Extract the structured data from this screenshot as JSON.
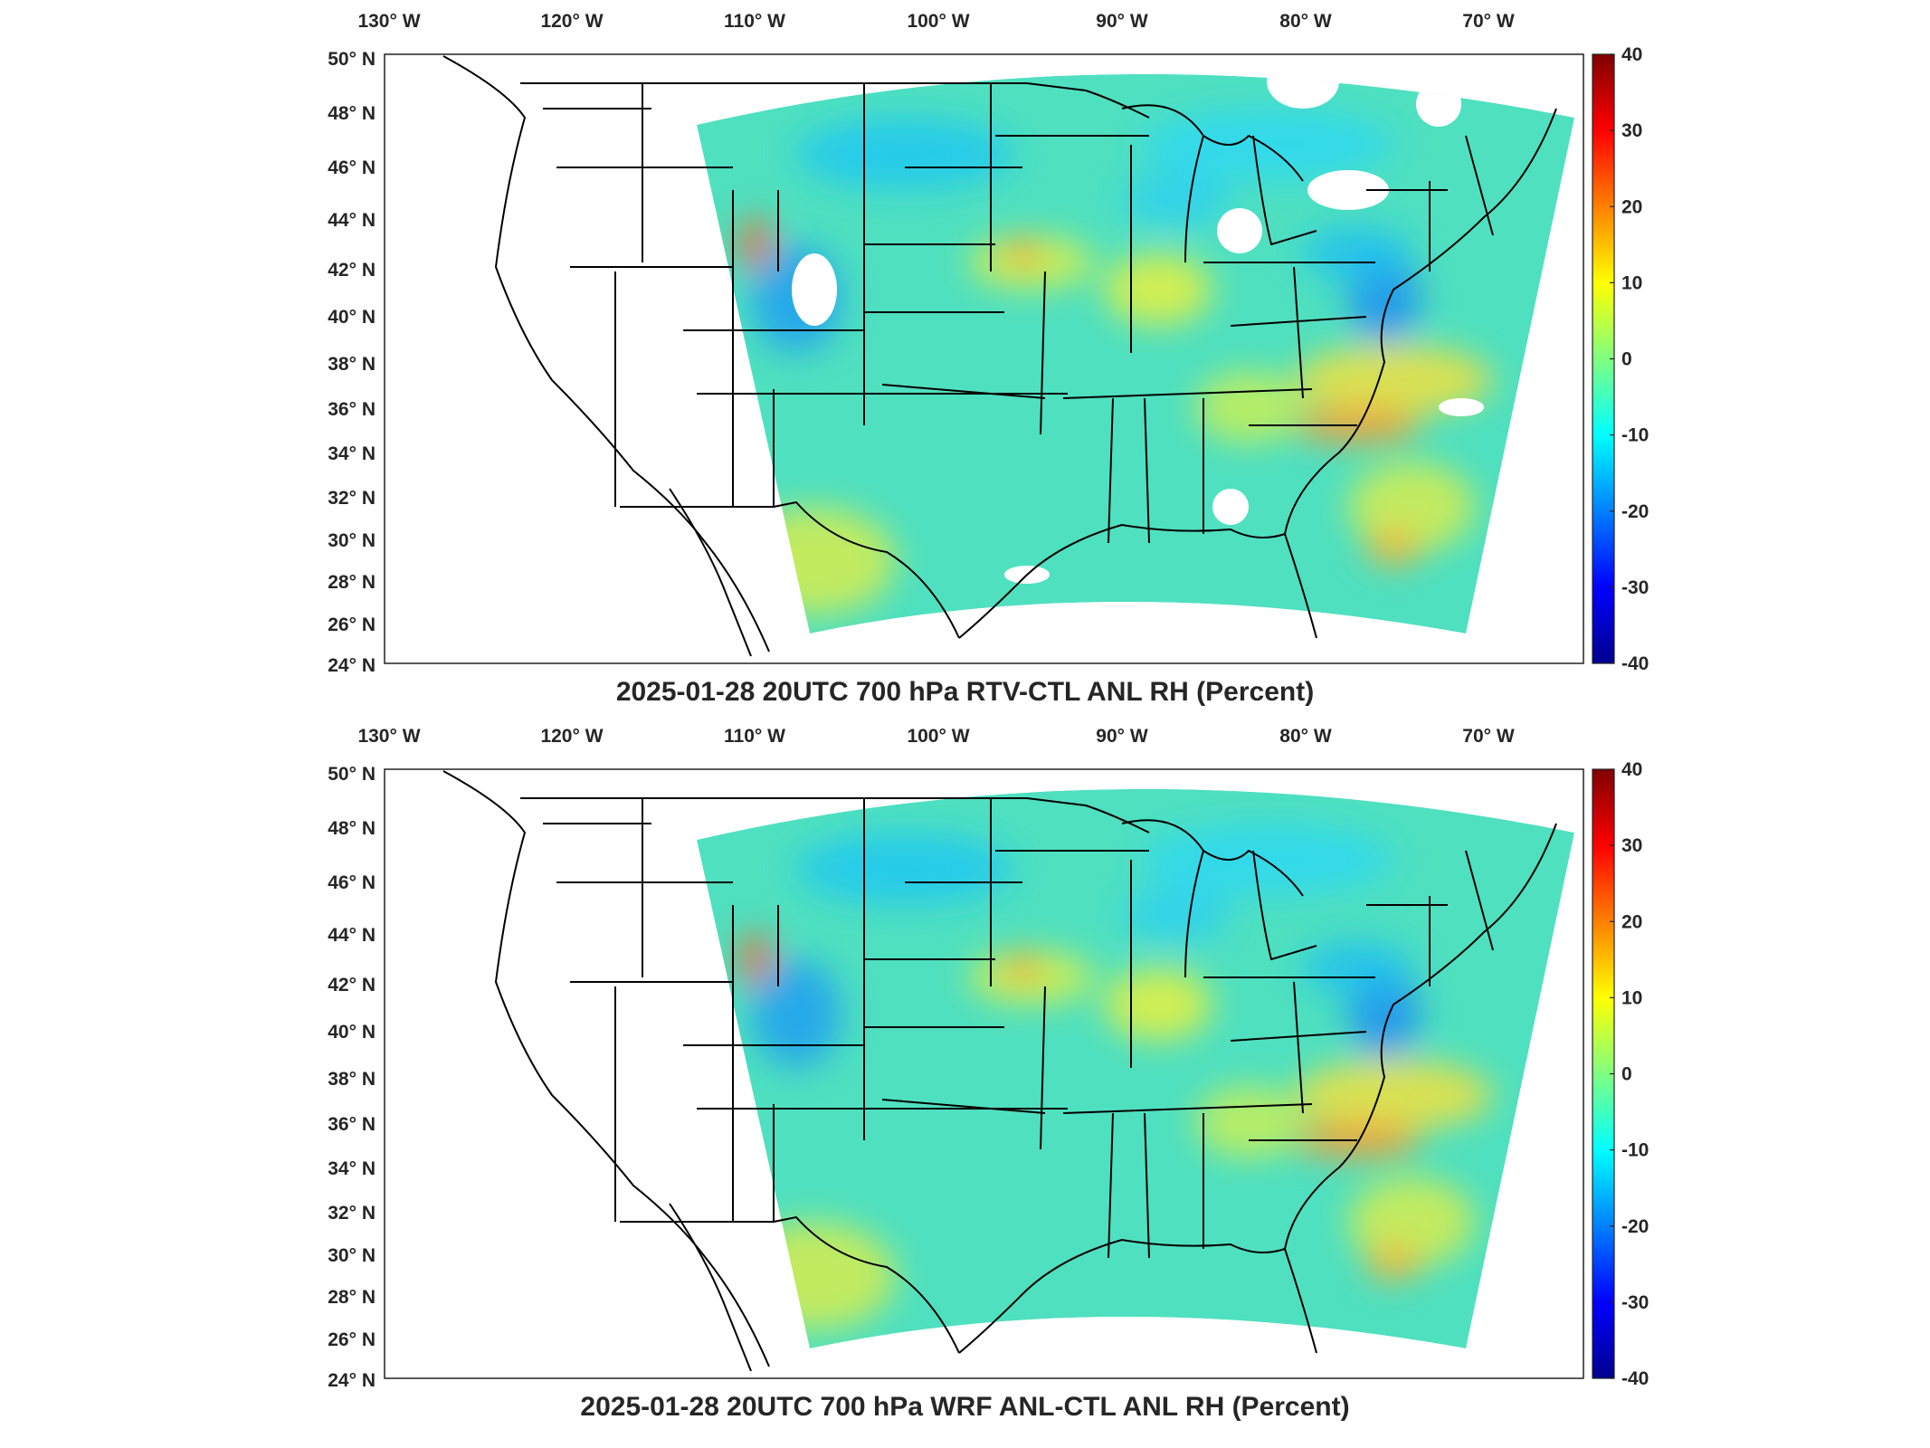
{
  "figure": {
    "panels": [
      {
        "title": "2025-01-28 20UTC 700 hPa RTV-CTL ANL RH (Percent)",
        "lon_ticks": [
          "130",
          "120",
          "110",
          "100",
          "90",
          "80",
          "70"
        ],
        "lon_hemisphere": "W",
        "lat_ticks": [
          "50",
          "48",
          "46",
          "44",
          "42",
          "40",
          "38",
          "36",
          "34",
          "32",
          "30",
          "28",
          "26",
          "24"
        ],
        "lat_hemisphere": "N",
        "colorbar": {
          "min": -40,
          "max": 40,
          "ticks": [
            "40",
            "30",
            "20",
            "10",
            "0",
            "-10",
            "-20",
            "-30",
            "-40"
          ]
        },
        "missing_data_patches": true
      },
      {
        "title": "2025-01-28 20UTC 700 hPa WRF ANL-CTL ANL RH (Percent)",
        "lon_ticks": [
          "130",
          "120",
          "110",
          "100",
          "90",
          "80",
          "70"
        ],
        "lon_hemisphere": "W",
        "lat_ticks": [
          "50",
          "48",
          "46",
          "44",
          "42",
          "40",
          "38",
          "36",
          "34",
          "32",
          "30",
          "28",
          "26",
          "24"
        ],
        "lat_hemisphere": "N",
        "colorbar": {
          "min": -40,
          "max": 40,
          "ticks": [
            "40",
            "30",
            "20",
            "10",
            "0",
            "-10",
            "-20",
            "-30",
            "-40"
          ]
        },
        "missing_data_patches": false
      }
    ],
    "colormap": [
      "#00008f",
      "#0000ff",
      "#0080ff",
      "#00ffff",
      "#80ff80",
      "#ffff00",
      "#ff8000",
      "#ff0000",
      "#800000"
    ],
    "field_base_color": "#4fe0c0",
    "outline_color": "#000000"
  }
}
